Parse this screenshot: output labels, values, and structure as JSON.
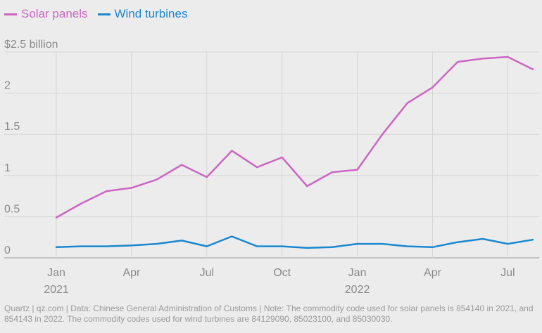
{
  "chart_data": {
    "type": "line",
    "x": [
      "2021-01",
      "2021-02",
      "2021-03",
      "2021-04",
      "2021-05",
      "2021-06",
      "2021-07",
      "2021-08",
      "2021-09",
      "2021-10",
      "2021-11",
      "2021-12",
      "2022-01",
      "2022-02",
      "2022-03",
      "2022-04",
      "2022-05",
      "2022-06",
      "2022-07",
      "2022-08"
    ],
    "series": [
      {
        "name": "Solar panels",
        "color": "#cc66c2",
        "values": [
          0.49,
          0.66,
          0.81,
          0.85,
          0.95,
          1.13,
          0.98,
          1.3,
          1.1,
          1.22,
          0.87,
          1.04,
          1.07,
          1.5,
          1.88,
          2.07,
          2.38,
          2.42,
          2.44,
          2.29
        ]
      },
      {
        "name": "Wind turbines",
        "color": "#1a87d0",
        "values": [
          0.13,
          0.14,
          0.14,
          0.15,
          0.17,
          0.21,
          0.14,
          0.26,
          0.14,
          0.14,
          0.12,
          0.13,
          0.17,
          0.17,
          0.14,
          0.13,
          0.19,
          0.23,
          0.17,
          0.22
        ]
      }
    ],
    "ylim": [
      0,
      2.5
    ],
    "y_ticks": [
      {
        "value": 0,
        "label": "0"
      },
      {
        "value": 0.5,
        "label": "0.5"
      },
      {
        "value": 1,
        "label": "1"
      },
      {
        "value": 1.5,
        "label": "1.5"
      },
      {
        "value": 2,
        "label": "2"
      },
      {
        "value": 2.5,
        "label": "$2.5 billion"
      }
    ],
    "x_ticks": [
      {
        "x": "2021-01",
        "label": "Jan",
        "sublabel": "2021"
      },
      {
        "x": "2021-04",
        "label": "Apr",
        "sublabel": ""
      },
      {
        "x": "2021-07",
        "label": "Jul",
        "sublabel": ""
      },
      {
        "x": "2021-10",
        "label": "Oct",
        "sublabel": ""
      },
      {
        "x": "2022-01",
        "label": "Jan",
        "sublabel": "2022"
      },
      {
        "x": "2022-04",
        "label": "Apr",
        "sublabel": ""
      },
      {
        "x": "2022-07",
        "label": "Jul",
        "sublabel": ""
      }
    ],
    "grid": true,
    "legend": "top-left"
  },
  "footer": {
    "text": "Quartz | qz.com | Data: Chinese General Administration of Customs | Note: The commodity code used for solar panels is 854140 in 2021, and 854143 in 2022. The commodity codes used for wind turbines are 84129090, 85023100, and 85030030."
  }
}
